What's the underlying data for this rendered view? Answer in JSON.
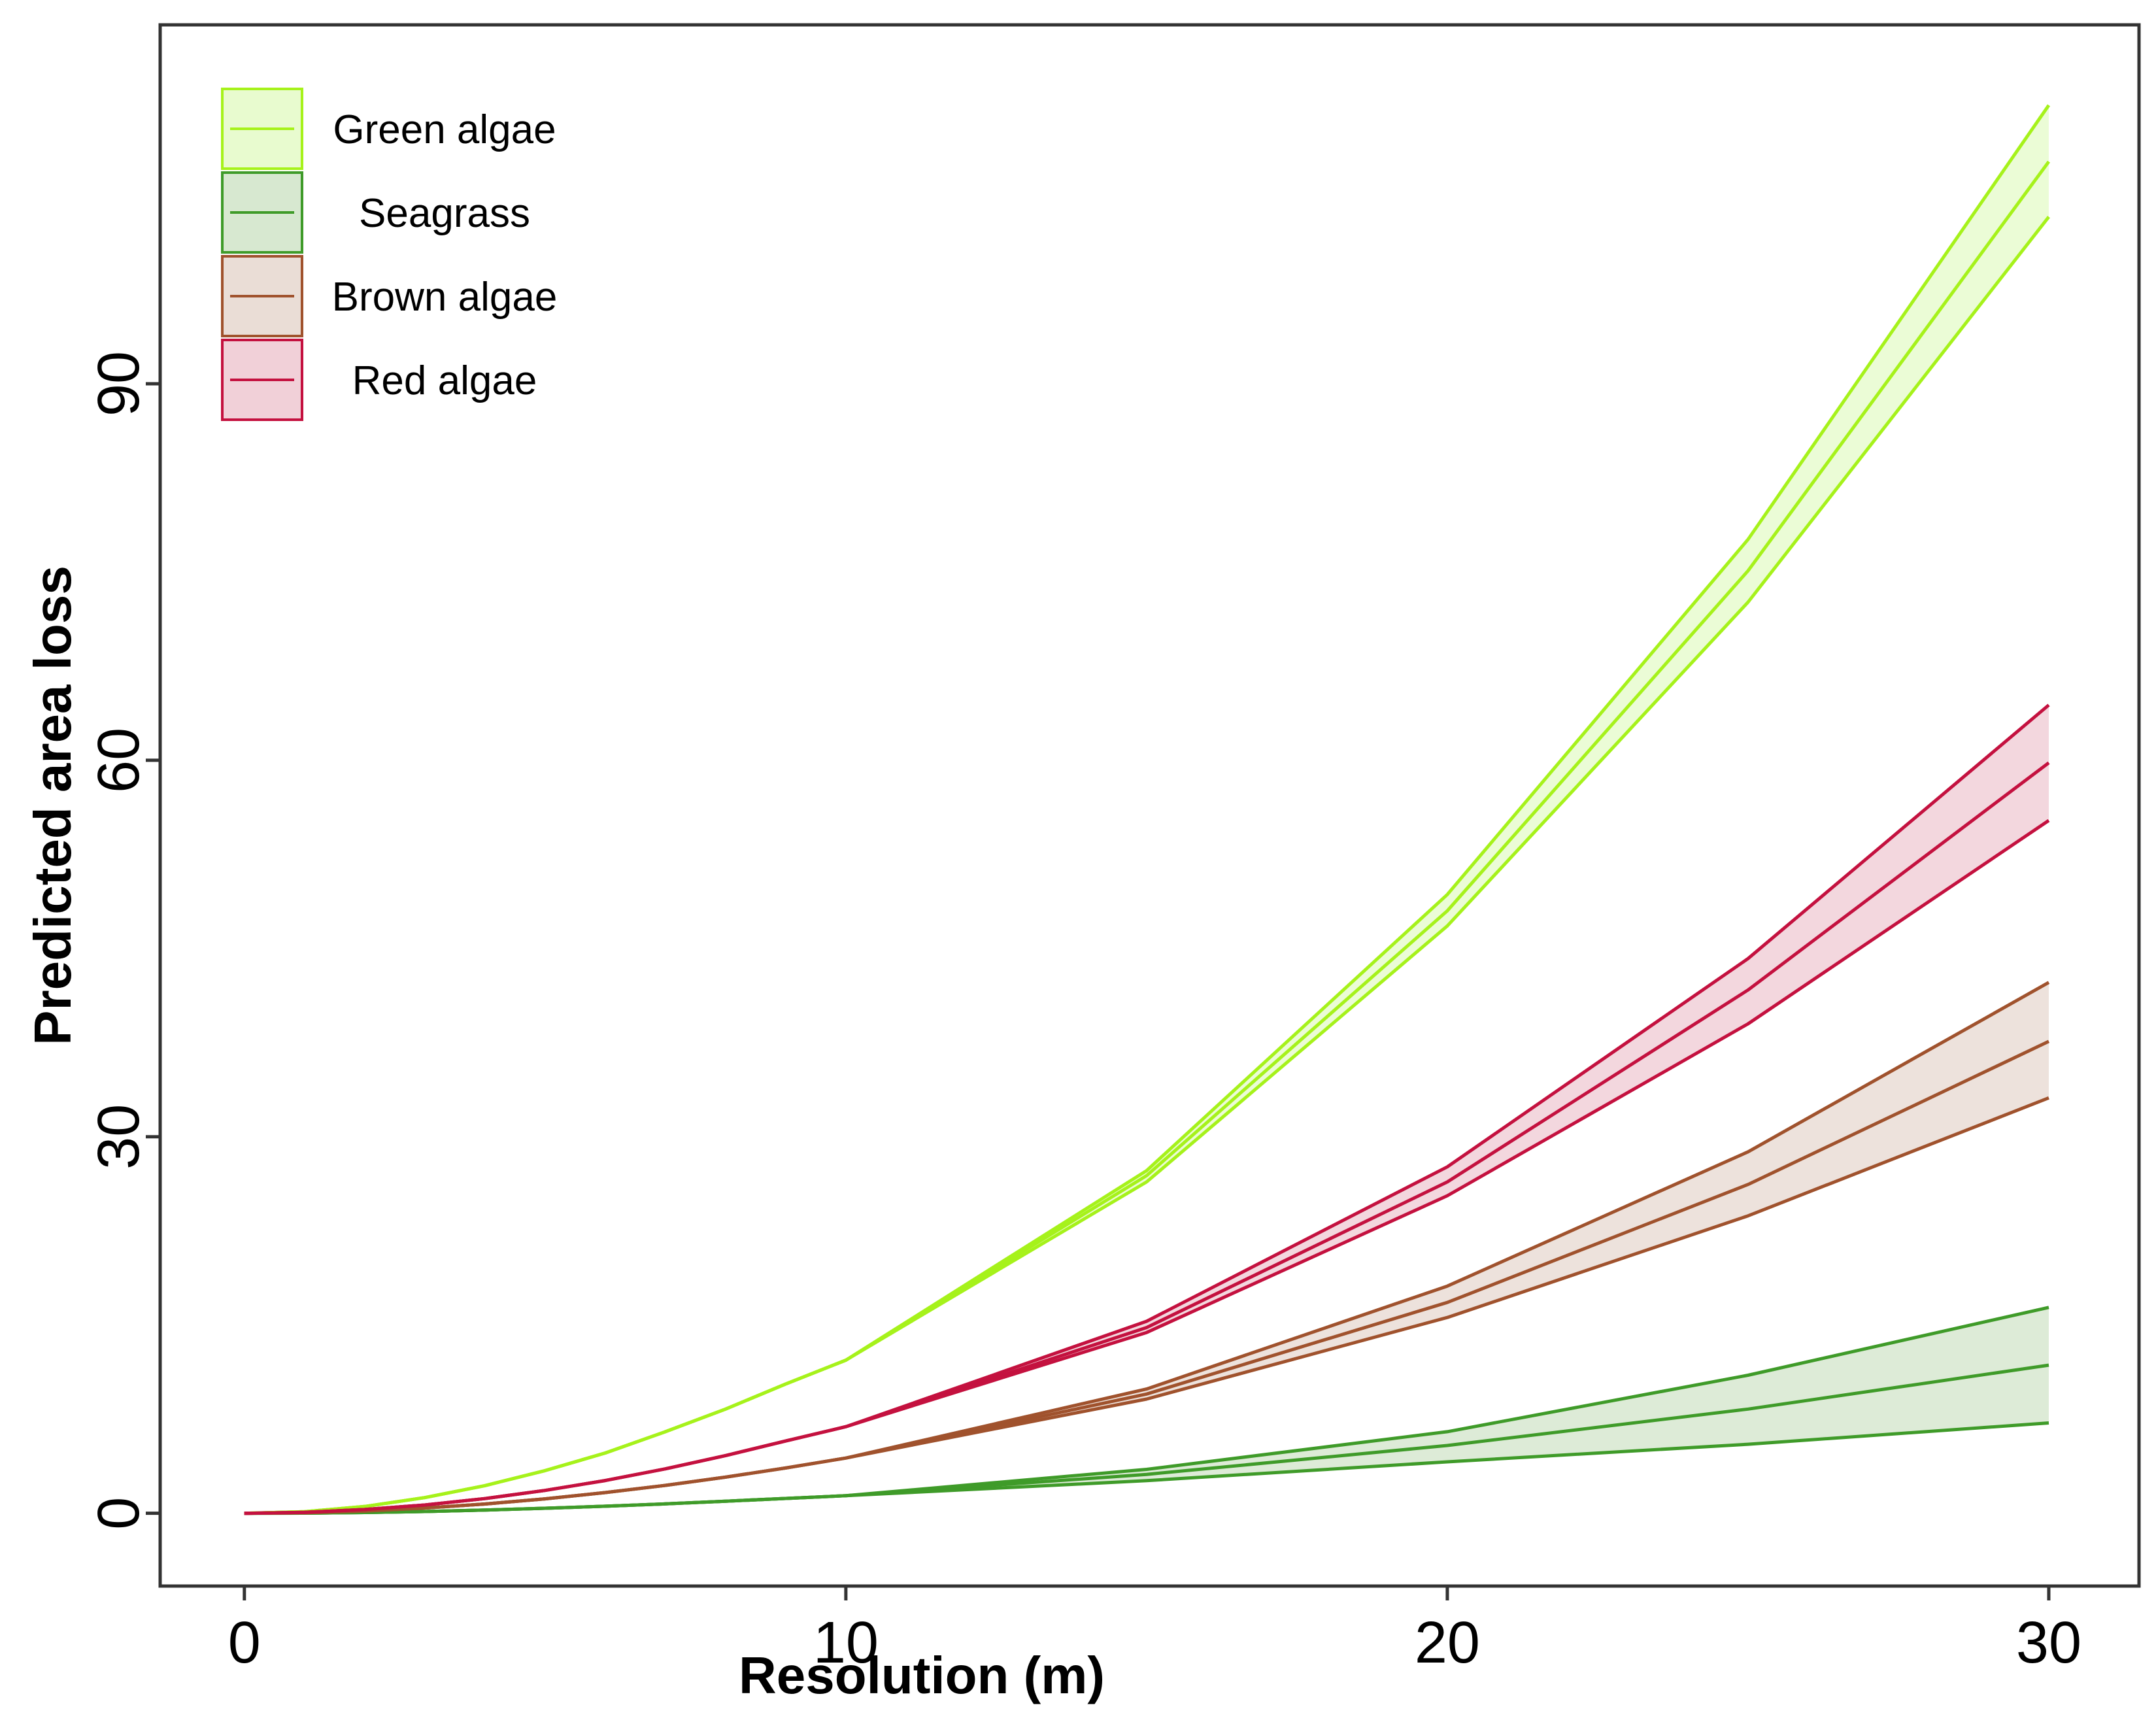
{
  "chart_data": {
    "type": "line",
    "title": "",
    "xlabel": "Resolution (m)",
    "ylabel": "Predicted area loss",
    "xlim": [
      -1.4,
      31.5
    ],
    "ylim": [
      -5.8,
      118.6
    ],
    "xticks": [
      0,
      10,
      20,
      30
    ],
    "yticks": [
      0,
      30,
      60,
      90
    ],
    "grid": false,
    "legend_position": "top-left",
    "x": [
      0,
      1,
      2,
      3,
      4,
      5,
      6,
      7,
      8,
      9,
      10,
      15,
      20,
      25,
      30
    ],
    "series": [
      {
        "name": "Green algae",
        "color": "#a6f21b",
        "fill": "#e8fbcf",
        "values": [
          0,
          0.13,
          0.54,
          1.25,
          2.2,
          3.4,
          4.8,
          6.5,
          8.3,
          10.3,
          12.2,
          26.9,
          48.0,
          75.1,
          107.7
        ],
        "lower": [
          0,
          0.13,
          0.54,
          1.25,
          2.2,
          3.4,
          4.8,
          6.5,
          8.3,
          10.3,
          12.2,
          26.4,
          46.8,
          72.6,
          103.3
        ],
        "upper": [
          0,
          0.13,
          0.54,
          1.25,
          2.2,
          3.4,
          4.8,
          6.5,
          8.3,
          10.3,
          12.2,
          27.3,
          49.3,
          77.6,
          112.2
        ]
      },
      {
        "name": "Seagrass",
        "color": "#3f9b29",
        "fill": "#d7e8d0",
        "values": [
          0,
          0.01,
          0.06,
          0.14,
          0.26,
          0.4,
          0.56,
          0.75,
          0.96,
          1.18,
          1.4,
          3.1,
          5.4,
          8.3,
          11.8
        ],
        "lower": [
          0,
          0.01,
          0.06,
          0.14,
          0.26,
          0.4,
          0.56,
          0.75,
          0.96,
          1.18,
          1.4,
          2.6,
          4.1,
          5.5,
          7.2
        ],
        "upper": [
          0,
          0.01,
          0.06,
          0.14,
          0.26,
          0.4,
          0.56,
          0.75,
          0.96,
          1.18,
          1.4,
          3.5,
          6.5,
          11.0,
          16.4
        ]
      },
      {
        "name": "Brown algae",
        "color": "#a0522d",
        "fill": "#eaddd6",
        "values": [
          0,
          0.04,
          0.18,
          0.42,
          0.74,
          1.15,
          1.65,
          2.22,
          2.88,
          3.61,
          4.4,
          9.5,
          16.8,
          26.2,
          37.6
        ],
        "lower": [
          0,
          0.04,
          0.18,
          0.42,
          0.74,
          1.15,
          1.65,
          2.22,
          2.88,
          3.61,
          4.4,
          9.1,
          15.6,
          23.7,
          33.1
        ],
        "upper": [
          0,
          0.04,
          0.18,
          0.42,
          0.74,
          1.15,
          1.65,
          2.22,
          2.88,
          3.61,
          4.4,
          9.9,
          18.1,
          28.8,
          42.3
        ]
      },
      {
        "name": "Red algae",
        "color": "#c4113f",
        "fill": "#f1d0d8",
        "values": [
          0,
          0.07,
          0.3,
          0.66,
          1.17,
          1.82,
          2.61,
          3.54,
          4.6,
          5.76,
          6.9,
          14.8,
          26.4,
          41.7,
          59.8
        ],
        "lower": [
          0,
          0.07,
          0.3,
          0.66,
          1.17,
          1.82,
          2.61,
          3.54,
          4.6,
          5.76,
          6.9,
          14.4,
          25.3,
          39.0,
          55.2
        ],
        "upper": [
          0,
          0.07,
          0.3,
          0.66,
          1.17,
          1.82,
          2.61,
          3.54,
          4.6,
          5.76,
          6.9,
          15.3,
          27.6,
          44.2,
          64.4
        ]
      }
    ]
  }
}
